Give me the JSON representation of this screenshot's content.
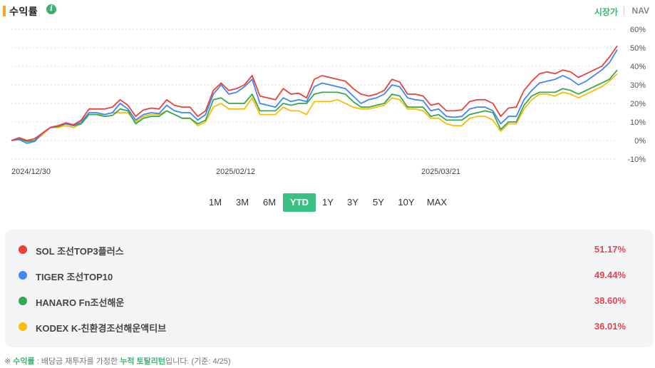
{
  "header": {
    "title": "수익률",
    "info_icon": "info-icon",
    "toggle_market": "시장가",
    "toggle_nav": "NAV"
  },
  "periods": [
    "1M",
    "3M",
    "6M",
    "YTD",
    "1Y",
    "3Y",
    "5Y",
    "10Y",
    "MAX"
  ],
  "active_period": "YTD",
  "chart_data": {
    "type": "line",
    "y_ticks": [
      "60%",
      "50%",
      "40%",
      "30%",
      "20%",
      "10%",
      "0%",
      "-10%"
    ],
    "x_ticks": [
      "2024/12/30",
      "2025/02/12",
      "2025/03/21"
    ],
    "ylim": [
      -10,
      60
    ],
    "grid": true,
    "series": [
      {
        "name": "SOL 조선TOP3플러스",
        "color": "#e8433a",
        "values": [
          0,
          1.5,
          0,
          1,
          4,
          7,
          8,
          9.5,
          8.5,
          11,
          17,
          17,
          17,
          18,
          22,
          19,
          13,
          16.5,
          17.5,
          17,
          22,
          19,
          18,
          18,
          13,
          16,
          27,
          31,
          27,
          28,
          30,
          35,
          24,
          23,
          22,
          28,
          25,
          25.5,
          23,
          33,
          35,
          34,
          33,
          32,
          28,
          25,
          24,
          25,
          27,
          33,
          31.5,
          25,
          25,
          24,
          19,
          20,
          16,
          16,
          16.5,
          21,
          22,
          22,
          20,
          13,
          17.5,
          18,
          27,
          32,
          36,
          37,
          36,
          38,
          37,
          34,
          36,
          38,
          40,
          45,
          51
        ]
      },
      {
        "name": "TIGER 조선TOP10",
        "color": "#4285f4",
        "values": [
          0,
          0.5,
          -1.5,
          -0.5,
          4,
          7,
          8,
          9,
          8,
          10,
          15,
          15,
          14,
          15,
          20,
          17,
          11,
          14,
          15,
          14.5,
          19,
          16,
          15,
          15,
          11,
          14,
          25,
          30,
          25,
          26,
          29,
          33,
          20,
          19,
          18,
          23,
          21,
          22,
          21,
          29,
          31,
          30,
          29,
          28,
          24,
          20,
          22,
          23,
          25,
          30,
          29,
          23,
          22,
          21.5,
          16,
          17,
          13,
          12.5,
          13,
          17,
          18,
          18,
          16,
          9,
          13,
          13,
          22,
          27,
          31,
          32,
          33,
          35,
          33,
          30,
          32,
          35,
          38,
          42,
          49
        ]
      },
      {
        "name": "HANARO Fn조선해운",
        "color": "#34a853",
        "values": [
          0,
          1,
          -0.5,
          0,
          4,
          7,
          7.5,
          9,
          8,
          9,
          14,
          14,
          13,
          13.5,
          17,
          16,
          9,
          12,
          13,
          13,
          16,
          14,
          12,
          12,
          9,
          11,
          22,
          23,
          20,
          20,
          20,
          25,
          16,
          16,
          16,
          20,
          19,
          20,
          20,
          25,
          26,
          26,
          26,
          25,
          21,
          18,
          18,
          19,
          20,
          25,
          24,
          18,
          18,
          18,
          13,
          14,
          11,
          11,
          11,
          14,
          15,
          16,
          15,
          6,
          10,
          10,
          19,
          24,
          26,
          26,
          26,
          28,
          27,
          25,
          27,
          29,
          31,
          33,
          38
        ]
      },
      {
        "name": "KODEX K-친환경조선해운액티브",
        "color": "#fbbc05",
        "values": [
          0,
          1,
          -0.5,
          0,
          3,
          7,
          7,
          8,
          7,
          9,
          14,
          14,
          14,
          15,
          15,
          15,
          10,
          13,
          14,
          14,
          16,
          14,
          12,
          12,
          8,
          10,
          18,
          20,
          17,
          17,
          17,
          23,
          14,
          14,
          14,
          18,
          16,
          16,
          14,
          21,
          21,
          21,
          22,
          20,
          18,
          17,
          17,
          18,
          19,
          23,
          22,
          17,
          17,
          16,
          12,
          12,
          9,
          8,
          8,
          12,
          13,
          13,
          11,
          5,
          9,
          9,
          17,
          22,
          25,
          25,
          24,
          26,
          25,
          23,
          25,
          27,
          29,
          32,
          36
        ]
      }
    ]
  },
  "legend": [
    {
      "name": "SOL 조선TOP3플러스",
      "value": "51.17%",
      "color": "#e8433a"
    },
    {
      "name": "TIGER 조선TOP10",
      "value": "49.44%",
      "color": "#4285f4"
    },
    {
      "name": "HANARO Fn조선해운",
      "value": "38.60%",
      "color": "#34a853"
    },
    {
      "name": "KODEX K-친환경조선해운액티브",
      "value": "36.01%",
      "color": "#fbbc05"
    }
  ],
  "footnote": {
    "mark": "※",
    "term": "수익률",
    "text1": " : 배당금 재투자를 가정한 ",
    "term2": "누적 토탈리턴",
    "text2": "입니다. (기준: 4/25)"
  }
}
